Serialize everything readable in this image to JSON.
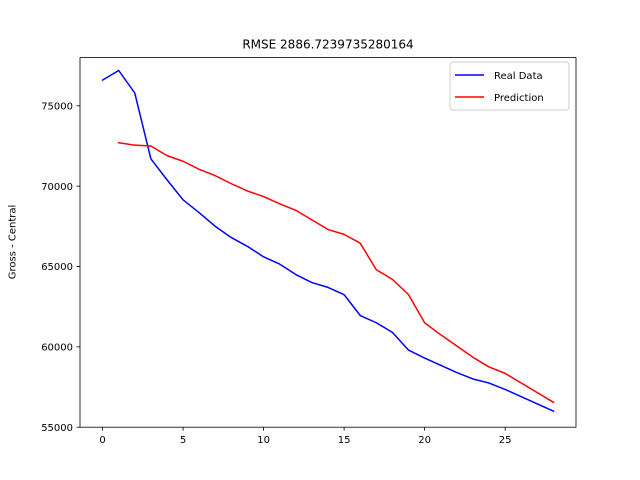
{
  "chart_data": {
    "type": "line",
    "title": "RMSE 2886.7239735280164",
    "xlabel": "",
    "ylabel": "Gross - Central",
    "xlim": [
      -1.4,
      29.4
    ],
    "ylim": [
      55000,
      78000
    ],
    "xticks": [
      0,
      5,
      10,
      15,
      20,
      25
    ],
    "yticks": [
      55000,
      60000,
      65000,
      70000,
      75000
    ],
    "grid": false,
    "legend_position": "top-right",
    "series": [
      {
        "name": "Real Data",
        "color": "#0000ff",
        "x": [
          0,
          1,
          2,
          3,
          4,
          5,
          6,
          7,
          8,
          9,
          10,
          11,
          12,
          13,
          14,
          15,
          16,
          17,
          18,
          19,
          20,
          21,
          22,
          23,
          24,
          25,
          26,
          27,
          28
        ],
        "y": [
          76600,
          77200,
          75800,
          71700,
          70400,
          69150,
          68350,
          67500,
          66800,
          66250,
          65600,
          65150,
          64500,
          64000,
          63700,
          63250,
          61950,
          61500,
          60900,
          59800,
          59300,
          58850,
          58400,
          58000,
          57750,
          57350,
          56900,
          56450,
          56000
        ]
      },
      {
        "name": "Prediction",
        "color": "#ff0000",
        "x": [
          1,
          2,
          3,
          4,
          5,
          6,
          7,
          8,
          9,
          10,
          11,
          12,
          13,
          14,
          15,
          16,
          17,
          18,
          19,
          20,
          21,
          22,
          23,
          24,
          25,
          26,
          27,
          28
        ],
        "y": [
          72700,
          72550,
          72500,
          71900,
          71550,
          71050,
          70650,
          70150,
          69700,
          69350,
          68900,
          68500,
          67900,
          67300,
          67000,
          66450,
          64800,
          64200,
          63250,
          61500,
          60750,
          60050,
          59350,
          58750,
          58350,
          57750,
          57150,
          56550
        ]
      }
    ]
  }
}
